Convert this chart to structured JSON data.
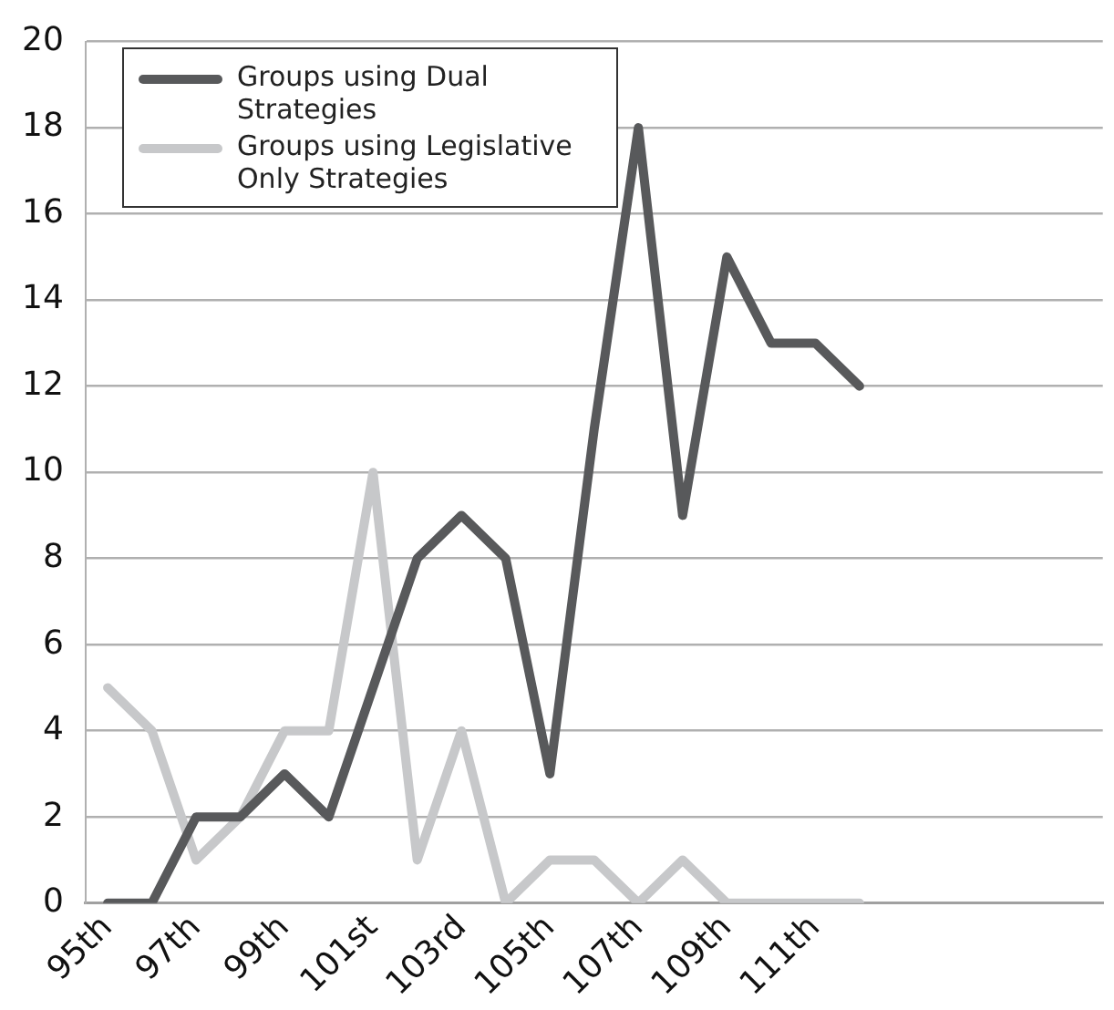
{
  "chart_data": {
    "type": "line",
    "categories": [
      "95th",
      null,
      "97th",
      null,
      "99th",
      null,
      "101st",
      null,
      "103rd",
      null,
      "105th",
      null,
      "107th",
      null,
      "109th",
      null,
      "111th",
      null,
      null,
      null,
      null,
      null,
      null
    ],
    "series": [
      {
        "name": "Groups using Dual Strategies",
        "color": "#58595b",
        "values": [
          0,
          0,
          2,
          2,
          3,
          2,
          5,
          8,
          9,
          8,
          3,
          11,
          18,
          9,
          15,
          13,
          13,
          12,
          null,
          null,
          null,
          null,
          null
        ]
      },
      {
        "name": "Groups using Legislative Only Strategies",
        "color": "#c7c8ca",
        "values": [
          5,
          4,
          1,
          2,
          4,
          4,
          10,
          1,
          4,
          0,
          1,
          1,
          0,
          1,
          0,
          0,
          0,
          0,
          null,
          null,
          null,
          null,
          null
        ]
      }
    ],
    "ylim": [
      0,
      20
    ],
    "yticks": [
      0,
      2,
      4,
      6,
      8,
      10,
      12,
      14,
      16,
      18,
      20
    ],
    "grid": "y",
    "legend": "top left",
    "marker": "none",
    "line_style": "solid"
  }
}
